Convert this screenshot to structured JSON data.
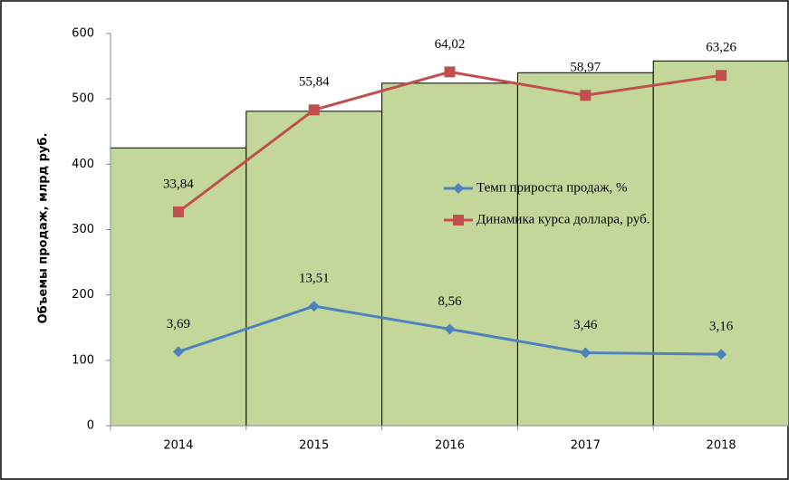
{
  "chart_data": {
    "type": "bar",
    "y_axis_label": "Объемы продаж, млрд руб.",
    "categories": [
      "2014",
      "2015",
      "2016",
      "2017",
      "2018"
    ],
    "values": [
      425,
      481,
      524,
      540,
      558
    ],
    "color": "#c4d79b",
    "ylim": [
      0,
      600
    ],
    "yticks": [
      0,
      100,
      200,
      300,
      400,
      500,
      600
    ],
    "y2lim": [
      -12.25,
      72.3
    ],
    "legend": "center-right",
    "series": [
      {
        "name": "Темп прироста продаж, %",
        "color": "#4f81bd",
        "type": "line",
        "marker": "diamond",
        "axis": "y2",
        "values": [
          3.69,
          13.51,
          8.56,
          3.46,
          3.16
        ],
        "value_labels": [
          "3,69",
          "13,51",
          "8,56",
          "3,46",
          "3,16"
        ]
      },
      {
        "name": "Динамика курса доллара, руб.",
        "color": "#c0504d",
        "type": "line",
        "marker": "square",
        "axis": "y2",
        "values": [
          33.84,
          55.84,
          64.02,
          58.97,
          63.26
        ],
        "value_labels": [
          "33,84",
          "55,84",
          "64,02",
          "58,97",
          "63,26"
        ]
      }
    ]
  }
}
